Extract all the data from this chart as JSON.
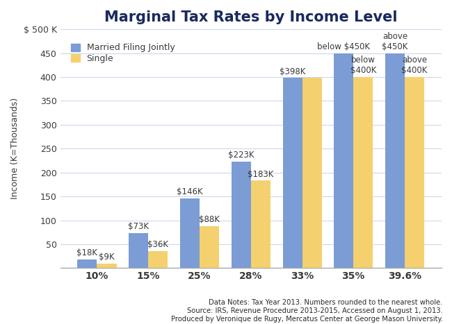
{
  "title": "Marginal Tax Rates by Income Level",
  "xlabel": "",
  "ylabel": "Income (K=Thousands)",
  "categories": [
    "10%",
    "15%",
    "25%",
    "28%",
    "33%",
    "35%",
    "39.6%"
  ],
  "married_values": [
    18,
    73,
    146,
    223,
    398,
    450,
    450
  ],
  "single_values": [
    9,
    36,
    88,
    183,
    398,
    400,
    400
  ],
  "married_color": "#7b9cd4",
  "single_color": "#f5d06e",
  "bar_labels_married": [
    "$18K",
    "$73K",
    "$146K",
    "$223K",
    "$398K",
    "below $450K",
    "above\n$450K"
  ],
  "bar_labels_single": [
    "$9K",
    "$36K",
    "$88K",
    "$183K",
    null,
    "below\n$400K",
    "above\n$400K"
  ],
  "ylim": [
    0,
    500
  ],
  "yticks": [
    0,
    50,
    100,
    150,
    200,
    250,
    300,
    350,
    400,
    450,
    500
  ],
  "ytick_labels": [
    "",
    "50",
    "100",
    "150",
    "200",
    "250",
    "300",
    "350",
    "400",
    "450",
    "$ 500 K"
  ],
  "legend_labels": [
    "Married Filing Jointly",
    "Single"
  ],
  "footnote": "Data Notes: Tax Year 2013. Numbers rounded to the nearest whole.\nSource: IRS, Revenue Procedure 2013-2015, Accessed on August 1, 2013.\nProduced by Veronique de Rugy, Mercatus Center at George Mason University.",
  "background_color": "#ffffff",
  "grid_color": "#ccd8ec",
  "bar_width": 0.38,
  "title_fontsize": 15,
  "label_fontsize": 8.5,
  "footnote_fontsize": 7.2,
  "text_color": "#2b3a6b",
  "axis_text_color": "#3a3a3a"
}
